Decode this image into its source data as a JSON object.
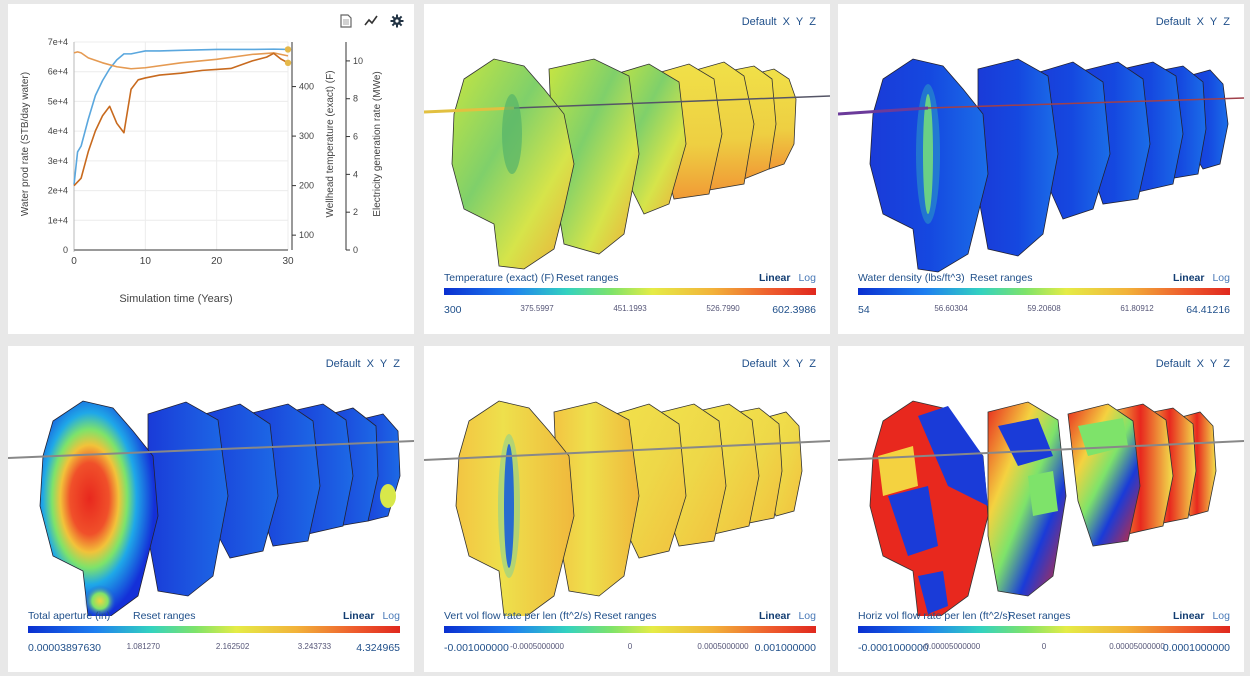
{
  "chart": {
    "toolbar": {
      "doc_icon": "document-icon",
      "line_icon": "line-chart-icon",
      "gear_icon": "gear-icon"
    },
    "xlabel": "Simulation time (Years)",
    "y1label": "Water prod rate (STB/day water)",
    "y2label": "Wellhead temperature (exact) (F)",
    "y3label": "Electricity generation rate (MWe)",
    "x_ticks": [
      "0",
      "10",
      "20",
      "30"
    ],
    "y1_ticks": [
      "0",
      "1e+4",
      "2e+4",
      "3e+4",
      "4e+4",
      "5e+4",
      "6e+4",
      "7e+4"
    ],
    "y2_ticks": [
      "100",
      "200",
      "300",
      "400"
    ],
    "y3_ticks": [
      "0",
      "2",
      "4",
      "6",
      "8",
      "10"
    ]
  },
  "chart_data": {
    "type": "line",
    "xlabel": "Simulation time (Years)",
    "xlim": [
      0,
      30
    ],
    "axes": {
      "y1": {
        "label": "Water prod rate (STB/day water)",
        "ylim": [
          0,
          70000
        ]
      },
      "y2": {
        "label": "Wellhead temperature (exact) (F)",
        "ylim": [
          70,
          490
        ]
      },
      "y3": {
        "label": "Electricity generation rate (MWe)",
        "ylim": [
          0,
          11
        ]
      }
    },
    "series": [
      {
        "axis": "y1",
        "color": "#5aa7de",
        "x": [
          0,
          0.5,
          1,
          2,
          3,
          4,
          5,
          6,
          7,
          8,
          9,
          10,
          12,
          15,
          20,
          25,
          28,
          30
        ],
        "y": [
          22000,
          33000,
          35000,
          44000,
          52000,
          57000,
          61000,
          64000,
          66000,
          66000,
          66500,
          67000,
          67000,
          67200,
          67500,
          67500,
          67600,
          67500
        ]
      },
      {
        "axis": "y2",
        "color": "#e59a52",
        "x": [
          0,
          0.5,
          1,
          2,
          4,
          6,
          8,
          10,
          15,
          20,
          25,
          28,
          30
        ],
        "y": [
          468,
          470,
          468,
          458,
          448,
          440,
          436,
          438,
          448,
          455,
          465,
          468,
          462
        ]
      },
      {
        "axis": "y3",
        "color": "#c86a1e",
        "x": [
          0,
          1,
          2,
          3,
          4,
          5,
          6,
          7,
          8,
          9,
          10,
          12,
          15,
          18,
          20,
          22,
          25,
          27,
          28,
          29,
          30
        ],
        "y": [
          3.4,
          3.8,
          5.2,
          6.3,
          7.1,
          7.6,
          6.7,
          6.2,
          8.5,
          9.0,
          9.1,
          9.25,
          9.35,
          9.5,
          9.55,
          9.6,
          10.0,
          10.2,
          10.4,
          10.1,
          9.9
        ]
      }
    ],
    "markers": [
      {
        "axis": "y1",
        "x": 30,
        "y": 67500,
        "color": "#e5b84a"
      },
      {
        "axis": "y3",
        "x": 30,
        "y": 9.9,
        "color": "#e5b84a"
      }
    ]
  },
  "panels": [
    {
      "id": "temperature",
      "view": {
        "default": "Default",
        "x": "X",
        "y": "Y",
        "z": "Z"
      },
      "legend": {
        "title": "Temperature (exact) (F)",
        "reset": "Reset ranges",
        "linear": "Linear",
        "log": "Log",
        "ticks": [
          "300",
          "375.5997",
          "451.1993",
          "526.7990",
          "602.3986"
        ]
      }
    },
    {
      "id": "density",
      "view": {
        "default": "Default",
        "x": "X",
        "y": "Y",
        "z": "Z"
      },
      "legend": {
        "title": "Water density (lbs/ft^3)",
        "reset": "Reset ranges",
        "linear": "Linear",
        "log": "Log",
        "ticks": [
          "54",
          "56.60304",
          "59.20608",
          "61.80912",
          "64.41216"
        ]
      }
    },
    {
      "id": "aperture",
      "view": {
        "default": "Default",
        "x": "X",
        "y": "Y",
        "z": "Z"
      },
      "legend": {
        "title": "Total aperture (in)",
        "reset": "Reset ranges",
        "linear": "Linear",
        "log": "Log",
        "ticks": [
          "0.00003897630",
          "1.081270",
          "2.162502",
          "3.243733",
          "4.324965"
        ]
      }
    },
    {
      "id": "vertflow",
      "view": {
        "default": "Default",
        "x": "X",
        "y": "Y",
        "z": "Z"
      },
      "legend": {
        "title": "Vert vol flow rate per len (ft^2/s)",
        "reset": "Reset ranges",
        "linear": "Linear",
        "log": "Log",
        "ticks": [
          "-0.001000000",
          "-0.0005000000",
          "0",
          "0.0005000000",
          "0.001000000"
        ]
      }
    },
    {
      "id": "horizflow",
      "view": {
        "default": "Default",
        "x": "X",
        "y": "Y",
        "z": "Z"
      },
      "legend": {
        "title": "Horiz vol flow rate per len (ft^2/s)",
        "reset": "Reset ranges",
        "linear": "Linear",
        "log": "Log",
        "ticks": [
          "-0.0001000000",
          "-0.00005000000",
          "0",
          "0.00005000000",
          "0.0001000000"
        ]
      }
    }
  ]
}
